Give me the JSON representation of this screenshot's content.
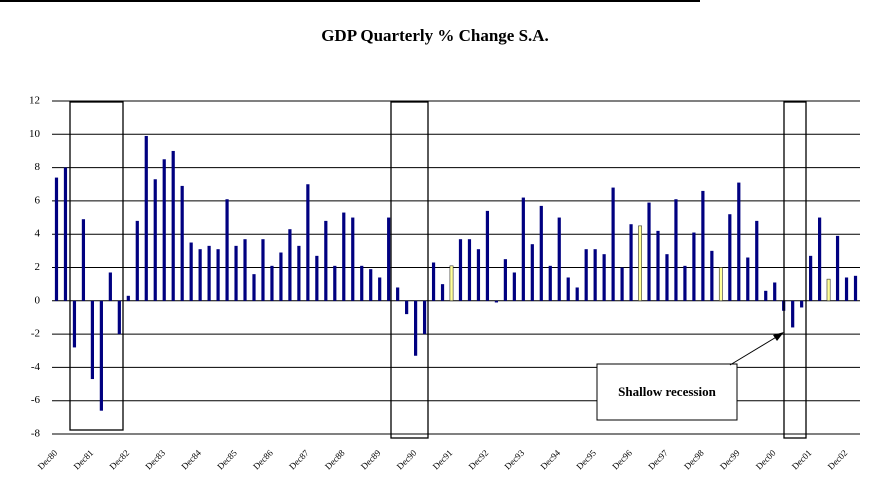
{
  "chart_data": {
    "type": "bar",
    "title": "GDP Quarterly % Change S.A.",
    "annotation": "Shallow recession",
    "categories": [
      "Dec80",
      null,
      null,
      null,
      "Dec81",
      null,
      null,
      null,
      "Dec82",
      null,
      null,
      null,
      "Dec83",
      null,
      null,
      null,
      "Dec84",
      null,
      null,
      null,
      "Dec85",
      null,
      null,
      null,
      "Dec86",
      null,
      null,
      null,
      "Dec87",
      null,
      null,
      null,
      "Dec88",
      null,
      null,
      null,
      "Dec89",
      null,
      null,
      null,
      "Dec90",
      null,
      null,
      null,
      "Dec91",
      null,
      null,
      null,
      "Dec92",
      null,
      null,
      null,
      "Dec93",
      null,
      null,
      null,
      "Dec94",
      null,
      null,
      null,
      "Dec95",
      null,
      null,
      null,
      "Dec96",
      null,
      null,
      null,
      "Dec97",
      null,
      null,
      null,
      "Dec98",
      null,
      null,
      null,
      "Dec99",
      null,
      null,
      null,
      "Dec00",
      null,
      null,
      null,
      "Dec01",
      null,
      null,
      null,
      "Dec02",
      null
    ],
    "values": [
      7.4,
      8.0,
      -2.8,
      4.9,
      -4.7,
      -6.6,
      1.7,
      -2.0,
      0.3,
      4.8,
      9.9,
      7.3,
      8.5,
      9.0,
      6.9,
      3.5,
      3.1,
      3.3,
      3.1,
      6.1,
      3.3,
      3.7,
      1.6,
      3.7,
      2.1,
      2.9,
      4.3,
      3.3,
      7.0,
      2.7,
      4.8,
      2.1,
      5.3,
      5.0,
      2.1,
      1.9,
      1.4,
      5.0,
      0.8,
      -0.8,
      -3.3,
      -2.0,
      2.3,
      1.0,
      2.1,
      3.7,
      3.7,
      3.1,
      5.4,
      -0.1,
      2.5,
      1.7,
      6.2,
      3.4,
      5.7,
      2.1,
      5.0,
      1.4,
      0.8,
      3.1,
      3.1,
      2.8,
      6.8,
      2.0,
      4.6,
      4.5,
      5.9,
      4.2,
      2.8,
      6.1,
      2.1,
      4.1,
      6.6,
      3.0,
      2.0,
      5.2,
      7.1,
      2.6,
      4.8,
      0.6,
      1.1,
      -0.6,
      -1.6,
      -0.4,
      2.7,
      5.0,
      1.3,
      3.9,
      1.4,
      1.5
    ],
    "colors": [
      "#000080",
      "#000080",
      "#000080",
      "#000080",
      "#000080",
      "#000080",
      "#000080",
      "#000080",
      "#000080",
      "#000080",
      "#000080",
      "#000080",
      "#000080",
      "#000080",
      "#000080",
      "#000080",
      "#000080",
      "#000080",
      "#000080",
      "#000080",
      "#000080",
      "#000080",
      "#000080",
      "#000080",
      "#000080",
      "#000080",
      "#000080",
      "#000080",
      "#000080",
      "#000080",
      "#000080",
      "#000080",
      "#000080",
      "#000080",
      "#000080",
      "#000080",
      "#000080",
      "#000080",
      "#000080",
      "#000080",
      "#000080",
      "#000080",
      "#000080",
      "#000080",
      "#ffff99",
      "#000080",
      "#000080",
      "#000080",
      "#000080",
      "#000080",
      "#000080",
      "#000080",
      "#000080",
      "#000080",
      "#000080",
      "#000080",
      "#000080",
      "#000080",
      "#000080",
      "#000080",
      "#000080",
      "#000080",
      "#000080",
      "#000080",
      "#000080",
      "#ffff99",
      "#000080",
      "#000080",
      "#000080",
      "#000080",
      "#000080",
      "#000080",
      "#000080",
      "#000080",
      "#ffff99",
      "#000080",
      "#000080",
      "#000080",
      "#000080",
      "#000080",
      "#000080",
      "#000080",
      "#000080",
      "#000080",
      "#000080",
      "#000080",
      "#ffff99",
      "#000080",
      "#000080",
      "#000080"
    ],
    "ylim": [
      -8,
      12
    ],
    "yticks": [
      -8,
      -6,
      -4,
      -2,
      0,
      2,
      4,
      6,
      8,
      10,
      12
    ],
    "grid": true
  }
}
